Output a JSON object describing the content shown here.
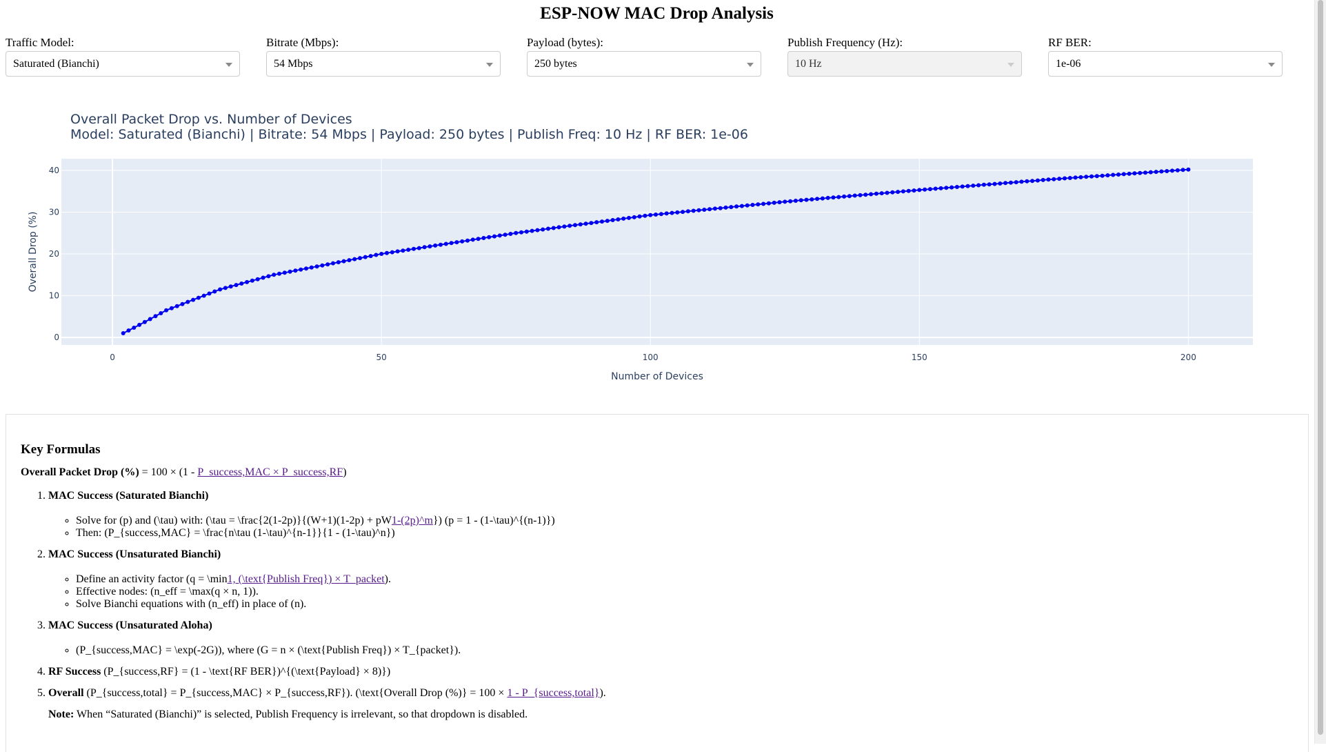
{
  "page": {
    "title": "ESP-NOW MAC Drop Analysis"
  },
  "controls": [
    {
      "label": "Traffic Model:",
      "value": "Saturated (Bianchi)",
      "disabled": false
    },
    {
      "label": "Bitrate (Mbps):",
      "value": "54 Mbps",
      "disabled": false
    },
    {
      "label": "Payload (bytes):",
      "value": "250 bytes",
      "disabled": false
    },
    {
      "label": "Publish Frequency (Hz):",
      "value": "10 Hz",
      "disabled": true
    },
    {
      "label": "RF BER:",
      "value": "1e-06",
      "disabled": false
    }
  ],
  "chart_data": {
    "type": "scatter",
    "mode": "lines+markers",
    "title": "Overall Packet Drop vs. Number of Devices",
    "subtitle": "Model: Saturated (Bianchi) | Bitrate: 54 Mbps | Payload: 250 bytes | Publish Freq: 10 Hz | RF BER: 1e-06",
    "xlabel": "Number of Devices",
    "ylabel": "Overall Drop (%)",
    "x_range": [
      -9.5,
      212
    ],
    "y_range": [
      -1.8,
      42.8
    ],
    "x_ticks": [
      0,
      50,
      100,
      150,
      200
    ],
    "y_ticks": [
      0,
      10,
      20,
      30,
      40
    ],
    "x": {
      "start": 2,
      "end": 200,
      "step": 1
    },
    "anchors": [
      [
        2,
        1.0
      ],
      [
        5,
        3.0
      ],
      [
        10,
        6.5
      ],
      [
        20,
        11.5
      ],
      [
        30,
        15.0
      ],
      [
        50,
        20.0
      ],
      [
        75,
        25.0
      ],
      [
        100,
        29.3
      ],
      [
        125,
        32.5
      ],
      [
        150,
        35.3
      ],
      [
        175,
        37.9
      ],
      [
        200,
        40.2
      ]
    ],
    "grid": true,
    "legend": false,
    "marker_color": "#0000ee",
    "plot_bg": "#e5ecf6"
  },
  "formulas": {
    "heading": "Key Formulas",
    "overall": {
      "label": "Overall Packet Drop (%)",
      "text": " = 100 × (1 - ",
      "link": "P_success,MAC × P_success,RF",
      "end": ")"
    },
    "steps": [
      {
        "title": "MAC Success (Saturated Bianchi)",
        "bullets": [
          {
            "pre": "Solve for (p) and (\\tau) with: (\\tau = \\frac{2(1-2p)}{(W+1)(1-2p) + pW",
            "link": "1-(2p)^m",
            "post": "}) (p = 1 - (1-\\tau)^{(n-1)})"
          },
          {
            "pre": "Then: (P_{success,MAC} = \\frac{n\\tau (1-\\tau)^{n-1}}{1 - (1-\\tau)^n})"
          }
        ]
      },
      {
        "title": "MAC Success (Unsaturated Bianchi)",
        "bullets": [
          {
            "pre": "Define an activity factor (q = \\min",
            "link": "1, (\\text{Publish Freq}) × T_packet",
            "post": ")."
          },
          {
            "pre": "Effective nodes: (n_eff = \\max(q × n, 1))."
          },
          {
            "pre": "Solve Bianchi equations with (n_eff) in place of (n)."
          }
        ]
      },
      {
        "title": "MAC Success (Unsaturated Aloha)",
        "bullets": [
          {
            "pre": "(P_{success,MAC} = \\exp(-2G)), where (G = n × (\\text{Publish Freq}) × T_{packet})."
          }
        ]
      }
    ],
    "rf": {
      "title": "RF Success",
      "text": " (P_{success,RF} = (1 - \\text{RF BER})^{(\\text{Payload} × 8)})"
    },
    "overall_step": {
      "title": "Overall",
      "pre": " (P_{success,total} = P_{success,MAC} × P_{success,RF}). (\\text{Overall Drop (%)} = 100 × ",
      "link": "1 - P_{success,total}",
      "post": ")."
    },
    "note": {
      "label": "Note:",
      "text": " When “Saturated (Bianchi)” is selected, Publish Frequency is irrelevant, so that dropdown is disabled."
    }
  }
}
